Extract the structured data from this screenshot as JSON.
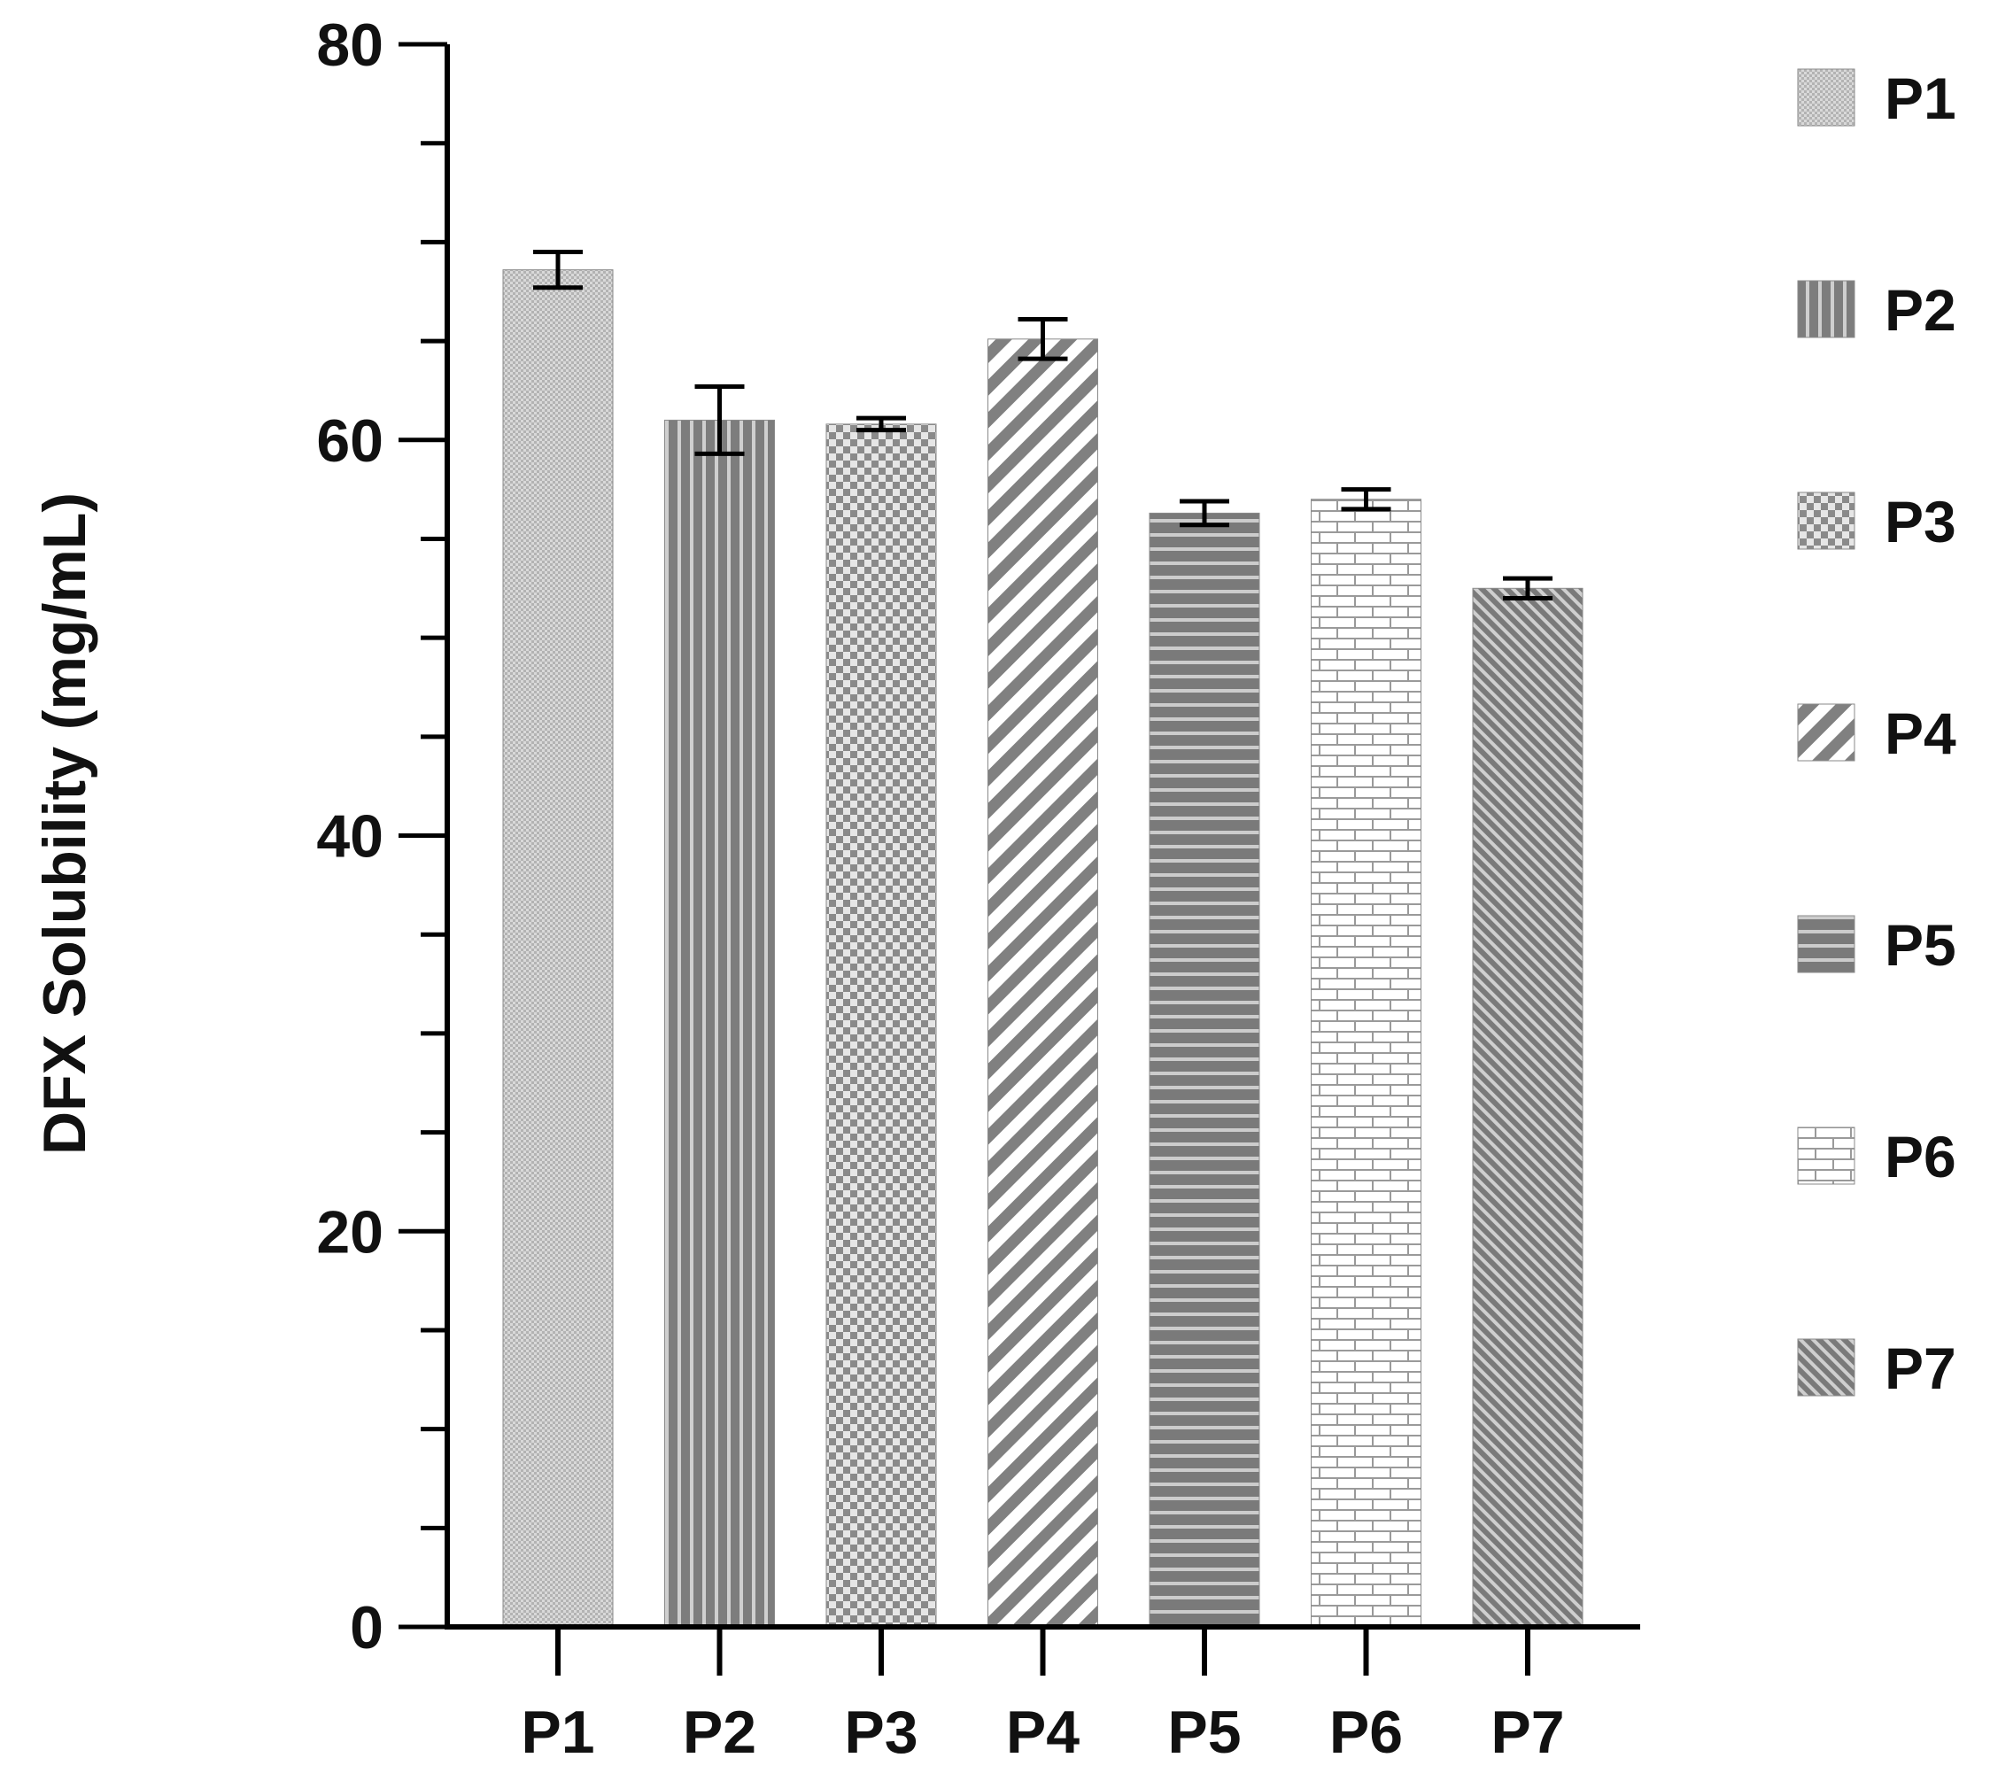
{
  "chart_data": {
    "type": "bar",
    "ylabel": "DFX Solubility (mg/mL)",
    "xlabel": "",
    "ylim": [
      0,
      80
    ],
    "yticks": [
      0,
      20,
      40,
      60,
      80
    ],
    "categories": [
      "P1",
      "P2",
      "P3",
      "P4",
      "P5",
      "P6",
      "P7"
    ],
    "values": [
      68.6,
      61.0,
      60.8,
      65.1,
      56.3,
      57.0,
      52.5
    ],
    "error": [
      0.9,
      1.7,
      0.3,
      1.0,
      0.6,
      0.5,
      0.5
    ],
    "legend": {
      "placement": "right",
      "entries": [
        "P1",
        "P2",
        "P3",
        "P4",
        "P5",
        "P6",
        "P7"
      ]
    },
    "patterns": [
      "fine-dots",
      "vertical-stripes",
      "checker",
      "diagonal-wide",
      "horizontal-stripes",
      "bricks",
      "diagonal-fine"
    ],
    "grid": false,
    "colors": {
      "bar_dark": "#7a7a7a",
      "bar_light": "#d0d0d0",
      "axis": "#000000"
    }
  }
}
